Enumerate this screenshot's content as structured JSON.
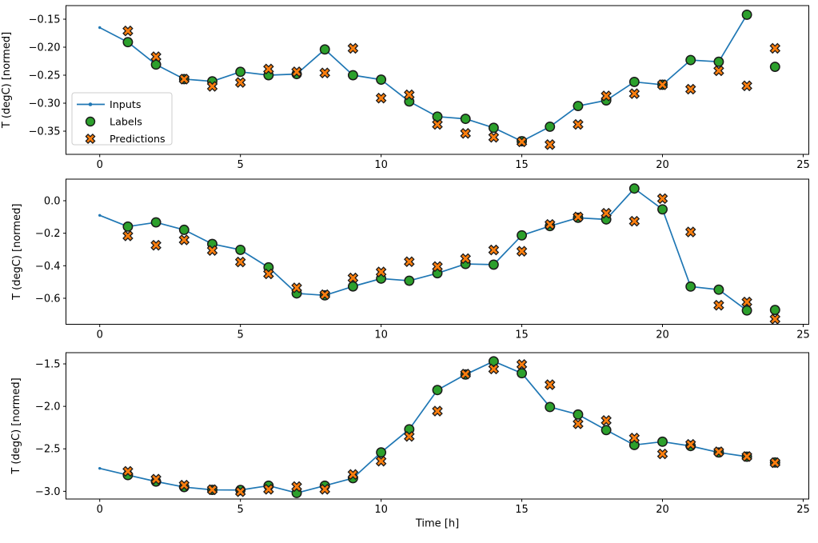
{
  "figure": {
    "background": "#ffffff",
    "xlabel": "Time [h]",
    "ylabel": "T (degC) [normed]",
    "x_tick_labels": [
      "0",
      "5",
      "10",
      "15",
      "20",
      "25"
    ],
    "legend": {
      "position": "upper-left-of-first-subplot",
      "items": [
        {
          "label": "Inputs",
          "marker": "line-with-dot",
          "color": "#1f77b4"
        },
        {
          "label": "Labels",
          "marker": "circle",
          "color": "#2ca02c"
        },
        {
          "label": "Predictions",
          "marker": "X",
          "color": "#ff7f0e"
        }
      ]
    },
    "colors": {
      "inputs_line": "#1f77b4",
      "labels_fill": "#2ca02c",
      "predictions_fill": "#ff7f0e",
      "marker_edge": "#1a1a1a",
      "spine": "#000000",
      "legend_border": "#cccccc"
    }
  },
  "chart_data": [
    {
      "type": "line+scatter",
      "subplot": 1,
      "ylabel": "T (degC) [normed]",
      "xlabel": "",
      "xlim": [
        -1.2,
        25.2
      ],
      "ylim": [
        -0.3914,
        -0.1257
      ],
      "xticks": {
        "values": [
          0,
          5,
          10,
          15,
          20,
          25
        ],
        "labels": [
          "0",
          "5",
          "10",
          "15",
          "20",
          "25"
        ]
      },
      "yticks": {
        "values": [
          -0.15,
          -0.2,
          -0.25,
          -0.3,
          -0.35
        ],
        "labels": [
          "−0.15",
          "−0.20",
          "−0.25",
          "−0.30",
          "−0.35"
        ]
      },
      "legend": true,
      "series": [
        {
          "name": "Inputs",
          "type": "line",
          "marker": "dot",
          "x": [
            0,
            1,
            2,
            3,
            4,
            5,
            6,
            7,
            8,
            9,
            10,
            11,
            12,
            13,
            14,
            15,
            16,
            17,
            18,
            19,
            20,
            21,
            22,
            23
          ],
          "y": [
            -0.165,
            -0.191,
            -0.231,
            -0.257,
            -0.261,
            -0.244,
            -0.25,
            -0.248,
            -0.204,
            -0.25,
            -0.258,
            -0.297,
            -0.324,
            -0.328,
            -0.344,
            -0.368,
            -0.342,
            -0.305,
            -0.295,
            -0.262,
            -0.267,
            -0.223,
            -0.226,
            -0.142
          ]
        },
        {
          "name": "Labels",
          "type": "scatter",
          "marker": "circle",
          "x": [
            1,
            2,
            3,
            4,
            5,
            6,
            7,
            8,
            9,
            10,
            11,
            12,
            13,
            14,
            15,
            16,
            17,
            18,
            19,
            20,
            21,
            22,
            23,
            24
          ],
          "y": [
            -0.191,
            -0.231,
            -0.257,
            -0.261,
            -0.244,
            -0.25,
            -0.248,
            -0.204,
            -0.25,
            -0.258,
            -0.297,
            -0.324,
            -0.328,
            -0.344,
            -0.368,
            -0.342,
            -0.305,
            -0.295,
            -0.262,
            -0.267,
            -0.223,
            -0.226,
            -0.142,
            -0.235
          ]
        },
        {
          "name": "Predictions",
          "type": "scatter",
          "marker": "X",
          "x": [
            1,
            2,
            3,
            4,
            5,
            6,
            7,
            8,
            9,
            10,
            11,
            12,
            13,
            14,
            15,
            16,
            17,
            18,
            19,
            20,
            21,
            22,
            23,
            24
          ],
          "y": [
            -0.171,
            -0.217,
            -0.257,
            -0.27,
            -0.263,
            -0.239,
            -0.244,
            -0.246,
            -0.202,
            -0.291,
            -0.285,
            -0.338,
            -0.354,
            -0.361,
            -0.369,
            -0.374,
            -0.338,
            -0.287,
            -0.283,
            -0.267,
            -0.275,
            -0.242,
            -0.269,
            -0.202
          ]
        }
      ]
    },
    {
      "type": "line+scatter",
      "subplot": 2,
      "ylabel": "T (degC) [normed]",
      "xlabel": "",
      "xlim": [
        -1.2,
        25.2
      ],
      "ylim": [
        -0.76,
        0.1328
      ],
      "xticks": {
        "values": [
          0,
          5,
          10,
          15,
          20,
          25
        ],
        "labels": [
          "0",
          "5",
          "10",
          "15",
          "20",
          "25"
        ]
      },
      "yticks": {
        "values": [
          0.0,
          -0.2,
          -0.4,
          -0.6
        ],
        "labels": [
          "0.0",
          "−0.2",
          "−0.4",
          "−0.6"
        ]
      },
      "legend": false,
      "series": [
        {
          "name": "Inputs",
          "type": "line",
          "marker": "dot",
          "x": [
            0,
            1,
            2,
            3,
            4,
            5,
            6,
            7,
            8,
            9,
            10,
            11,
            12,
            13,
            14,
            15,
            16,
            17,
            18,
            19,
            20,
            21,
            22,
            23
          ],
          "y": [
            -0.09,
            -0.159,
            -0.133,
            -0.179,
            -0.266,
            -0.302,
            -0.41,
            -0.57,
            -0.582,
            -0.527,
            -0.479,
            -0.492,
            -0.446,
            -0.389,
            -0.393,
            -0.213,
            -0.156,
            -0.105,
            -0.115,
            0.075,
            -0.053,
            -0.528,
            -0.547,
            -0.675
          ]
        },
        {
          "name": "Labels",
          "type": "scatter",
          "marker": "circle",
          "x": [
            1,
            2,
            3,
            4,
            5,
            6,
            7,
            8,
            9,
            10,
            11,
            12,
            13,
            14,
            15,
            16,
            17,
            18,
            19,
            20,
            21,
            22,
            23,
            24
          ],
          "y": [
            -0.159,
            -0.133,
            -0.179,
            -0.266,
            -0.302,
            -0.41,
            -0.57,
            -0.582,
            -0.527,
            -0.479,
            -0.492,
            -0.446,
            -0.389,
            -0.393,
            -0.213,
            -0.156,
            -0.105,
            -0.115,
            0.075,
            -0.053,
            -0.528,
            -0.547,
            -0.675,
            -0.672
          ]
        },
        {
          "name": "Predictions",
          "type": "scatter",
          "marker": "X",
          "x": [
            1,
            2,
            3,
            4,
            5,
            6,
            7,
            8,
            9,
            10,
            11,
            12,
            13,
            14,
            15,
            16,
            17,
            18,
            19,
            20,
            21,
            22,
            23,
            24
          ],
          "y": [
            -0.216,
            -0.274,
            -0.241,
            -0.306,
            -0.377,
            -0.45,
            -0.536,
            -0.578,
            -0.475,
            -0.438,
            -0.375,
            -0.405,
            -0.356,
            -0.303,
            -0.311,
            -0.146,
            -0.1,
            -0.077,
            -0.126,
            0.013,
            -0.192,
            -0.643,
            -0.623,
            -0.728
          ]
        }
      ]
    },
    {
      "type": "line+scatter",
      "subplot": 3,
      "ylabel": "T (degC) [normed]",
      "xlabel": "Time [h]",
      "xlim": [
        -1.2,
        25.2
      ],
      "ylim": [
        -3.0908,
        -1.368
      ],
      "xticks": {
        "values": [
          0,
          5,
          10,
          15,
          20,
          25
        ],
        "labels": [
          "0",
          "5",
          "10",
          "15",
          "20",
          "25"
        ]
      },
      "yticks": {
        "values": [
          -1.5,
          -2.0,
          -2.5,
          -3.0
        ],
        "labels": [
          "−1.5",
          "−2.0",
          "−2.5",
          "−3.0"
        ]
      },
      "legend": false,
      "series": [
        {
          "name": "Inputs",
          "type": "line",
          "marker": "dot",
          "x": [
            0,
            1,
            2,
            3,
            4,
            5,
            6,
            7,
            8,
            9,
            10,
            11,
            12,
            13,
            14,
            15,
            16,
            17,
            18,
            19,
            20,
            21,
            22,
            23
          ],
          "y": [
            -2.73,
            -2.809,
            -2.885,
            -2.95,
            -2.983,
            -2.985,
            -2.934,
            -3.02,
            -2.934,
            -2.845,
            -2.542,
            -2.27,
            -1.808,
            -1.625,
            -1.47,
            -1.61,
            -2.008,
            -2.096,
            -2.279,
            -2.455,
            -2.416,
            -2.467,
            -2.543,
            -2.592
          ]
        },
        {
          "name": "Labels",
          "type": "scatter",
          "marker": "circle",
          "x": [
            1,
            2,
            3,
            4,
            5,
            6,
            7,
            8,
            9,
            10,
            11,
            12,
            13,
            14,
            15,
            16,
            17,
            18,
            19,
            20,
            21,
            22,
            23,
            24
          ],
          "y": [
            -2.809,
            -2.885,
            -2.95,
            -2.983,
            -2.985,
            -2.934,
            -3.02,
            -2.934,
            -2.845,
            -2.542,
            -2.27,
            -1.808,
            -1.625,
            -1.47,
            -1.61,
            -2.008,
            -2.096,
            -2.279,
            -2.455,
            -2.416,
            -2.467,
            -2.543,
            -2.592,
            -2.661
          ]
        },
        {
          "name": "Predictions",
          "type": "scatter",
          "marker": "X",
          "x": [
            1,
            2,
            3,
            4,
            5,
            6,
            7,
            8,
            9,
            10,
            11,
            12,
            13,
            14,
            15,
            16,
            17,
            18,
            19,
            20,
            21,
            22,
            23,
            24
          ],
          "y": [
            -2.765,
            -2.857,
            -2.928,
            -2.981,
            -3.005,
            -2.976,
            -2.944,
            -2.976,
            -2.802,
            -2.645,
            -2.354,
            -2.056,
            -1.62,
            -1.56,
            -1.507,
            -1.745,
            -2.206,
            -2.166,
            -2.373,
            -2.56,
            -2.448,
            -2.535,
            -2.59,
            -2.663
          ]
        }
      ]
    }
  ]
}
